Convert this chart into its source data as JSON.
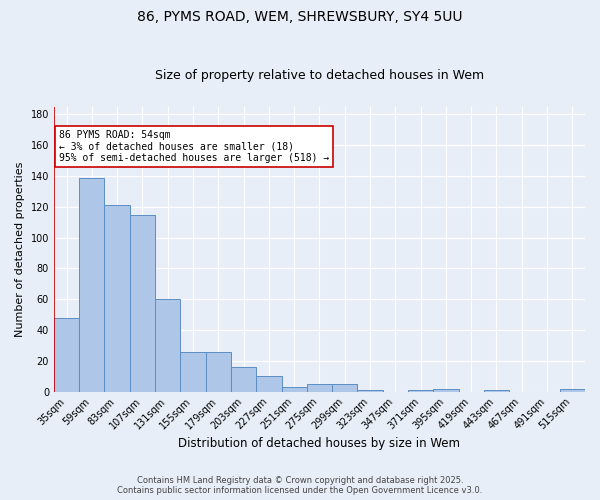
{
  "title": "86, PYMS ROAD, WEM, SHREWSBURY, SY4 5UU",
  "subtitle": "Size of property relative to detached houses in Wem",
  "xlabel": "Distribution of detached houses by size in Wem",
  "ylabel": "Number of detached properties",
  "categories": [
    "35sqm",
    "59sqm",
    "83sqm",
    "107sqm",
    "131sqm",
    "155sqm",
    "179sqm",
    "203sqm",
    "227sqm",
    "251sqm",
    "275sqm",
    "299sqm",
    "323sqm",
    "347sqm",
    "371sqm",
    "395sqm",
    "419sqm",
    "443sqm",
    "467sqm",
    "491sqm",
    "515sqm"
  ],
  "values": [
    48,
    139,
    121,
    115,
    60,
    26,
    26,
    16,
    10,
    3,
    5,
    5,
    1,
    0,
    1,
    2,
    0,
    1,
    0,
    0,
    2
  ],
  "bar_color": "#aec6e8",
  "bar_edge_color": "#5b8ec4",
  "bg_color": "#e8eef8",
  "grid_color": "#ffffff",
  "vline_color": "#cc0000",
  "annotation_line1": "86 PYMS ROAD: 54sqm",
  "annotation_line2": "← 3% of detached houses are smaller (18)",
  "annotation_line3": "95% of semi-detached houses are larger (518) →",
  "annotation_box_color": "#ffffff",
  "annotation_box_edge": "#cc0000",
  "footer_line1": "Contains HM Land Registry data © Crown copyright and database right 2025.",
  "footer_line2": "Contains public sector information licensed under the Open Government Licence v3.0.",
  "ylim": [
    0,
    185
  ],
  "yticks": [
    0,
    20,
    40,
    60,
    80,
    100,
    120,
    140,
    160,
    180
  ],
  "title_fontsize": 10,
  "subtitle_fontsize": 9,
  "xlabel_fontsize": 8.5,
  "ylabel_fontsize": 8,
  "tick_fontsize": 7,
  "annotation_fontsize": 7,
  "footer_fontsize": 6
}
